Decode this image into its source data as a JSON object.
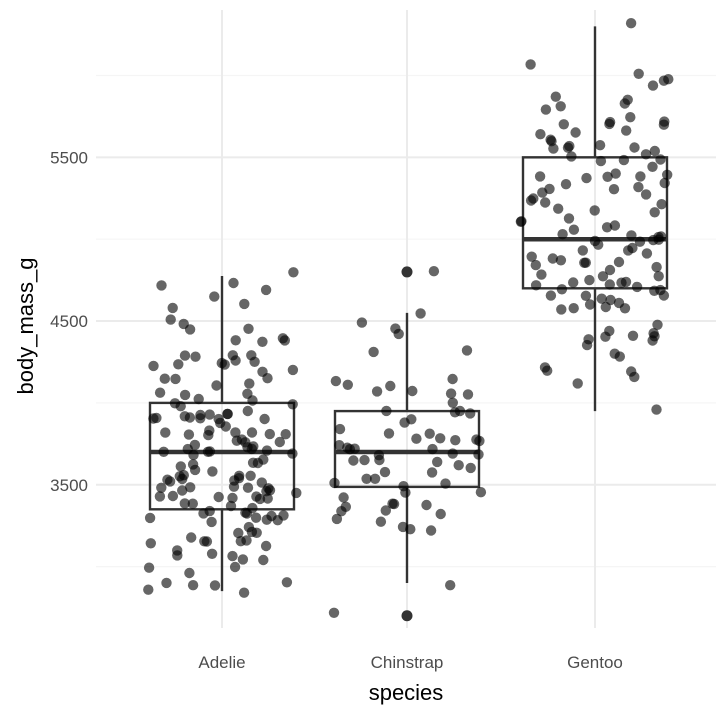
{
  "chart_data": {
    "type": "boxplot",
    "title": "",
    "xlabel": "species",
    "ylabel": "body_mass_g",
    "categories": [
      "Adelie",
      "Chinstrap",
      "Gentoo"
    ],
    "yticks": [
      3500,
      4500,
      5500
    ],
    "ylim": [
      2625,
      6400
    ],
    "grid": true,
    "boxes": [
      {
        "category": "Adelie",
        "min": 2850,
        "q1": 3350,
        "median": 3700,
        "q3": 4000,
        "max": 4775,
        "outliers": []
      },
      {
        "category": "Chinstrap",
        "min": 2900,
        "q1": 3487,
        "median": 3700,
        "q3": 3950,
        "max": 4550,
        "outliers": [
          2700,
          4800
        ]
      },
      {
        "category": "Gentoo",
        "min": 3950,
        "q1": 4700,
        "median": 5000,
        "q3": 5500,
        "max": 6300,
        "outliers": []
      }
    ],
    "points": [
      {
        "category": "Adelie",
        "y": [
          3750,
          3800,
          3250,
          3450,
          3650,
          3625,
          4675,
          3475,
          4250,
          3300,
          3700,
          3200,
          3800,
          4400,
          3700,
          3450,
          4500,
          3325,
          4200,
          3400,
          3600,
          3800,
          3950,
          3800,
          3800,
          3550,
          3200,
          3150,
          3950,
          3250,
          3900,
          3300,
          3900,
          3325,
          4150,
          3950,
          3550,
          3300,
          4650,
          3150,
          3900,
          3100,
          4400,
          3000,
          4600,
          3425,
          2975,
          3450,
          4150,
          3500,
          4300,
          3450,
          4050,
          2900,
          3700,
          3550,
          3800,
          2850,
          3750,
          3150,
          4400,
          3600,
          4050,
          2850,
          3950,
          3350,
          4100,
          3050,
          4450,
          3600,
          3900,
          3550,
          4150,
          3700,
          4250,
          3700,
          3900,
          3550,
          4000,
          3200,
          4700,
          3800,
          4200,
          3350,
          3550,
          3800,
          3500,
          3950,
          3600,
          3550,
          4300,
          3400,
          4450,
          3300,
          4300,
          3700,
          4350,
          2900,
          4100,
          3725,
          4725,
          3075,
          4250,
          2925,
          3550,
          3750,
          3900,
          3175,
          4775,
          3825,
          4600,
          3200,
          4275,
          3900,
          4075,
          2900,
          3775,
          3350,
          3325,
          3150,
          3500,
          3450,
          3875,
          3050,
          4000,
          3275,
          4300,
          3050,
          4000,
          3325,
          3500,
          3500,
          4475,
          3425,
          3900,
          3175,
          3975,
          3400,
          4250,
          3400,
          3475,
          3050,
          3725,
          3000,
          3650,
          4250,
          3475,
          3450,
          3750,
          3700,
          4000
        ]
      },
      {
        "category": "Chinstrap",
        "y": [
          3500,
          3900,
          3650,
          3525,
          3725,
          3950,
          3250,
          3750,
          4150,
          3700,
          3800,
          3775,
          3700,
          4050,
          3575,
          4050,
          3300,
          3700,
          3450,
          4400,
          3600,
          3400,
          2900,
          3800,
          3300,
          4150,
          3400,
          3800,
          3700,
          4550,
          3200,
          4300,
          3350,
          4100,
          3600,
          3900,
          3850,
          4800,
          2700,
          4500,
          3950,
          3650,
          3550,
          3500,
          3675,
          4450,
          3400,
          4300,
          3250,
          3675,
          3325,
          3950,
          3600,
          4050,
          3350,
          3450,
          3250,
          4050,
          3800,
          3525,
          3950,
          3650,
          3650,
          4000,
          3400,
          3775,
          4100,
          3775
        ]
      },
      {
        "category": "Gentoo",
        "y": [
          4500,
          5700,
          4450,
          5700,
          5400,
          4550,
          4800,
          5200,
          4400,
          5150,
          4650,
          5550,
          4650,
          5850,
          4200,
          5850,
          4150,
          6300,
          4800,
          5350,
          5700,
          5000,
          4400,
          5050,
          5000,
          5100,
          4100,
          5650,
          4600,
          5550,
          5250,
          4700,
          5050,
          6050,
          5150,
          5400,
          4950,
          5250,
          4350,
          5350,
          3950,
          5700,
          4300,
          4750,
          5550,
          4900,
          4200,
          5400,
          5100,
          5300,
          4850,
          5300,
          4400,
          5000,
          4900,
          5050,
          4300,
          5000,
          4450,
          5550,
          4200,
          5300,
          4400,
          5650,
          4700,
          5700,
          4650,
          5800,
          4700,
          5550,
          4750,
          5000,
          5100,
          5200,
          4700,
          5800,
          4600,
          6000,
          4750,
          5950,
          4625,
          5450,
          4725,
          5350,
          4750,
          5600,
          4600,
          5300,
          4875,
          5550,
          4950,
          5400,
          4750,
          5650,
          4850,
          5200,
          4925,
          4875,
          4625,
          5250,
          4850,
          5600,
          4975,
          5500,
          4725,
          5500,
          4700,
          5500,
          4575,
          5500,
          5000,
          5950,
          4650,
          5500,
          4375,
          5850,
          4875,
          6000,
          4925,
          4850,
          5750,
          5200,
          5400
        ]
      }
    ],
    "colors": {
      "background": "#ffffff",
      "grid_major": "#ebebeb",
      "grid_minor": "#f5f5f5",
      "box": "#333333",
      "point": "#000000",
      "point_alpha": 0.6
    }
  }
}
